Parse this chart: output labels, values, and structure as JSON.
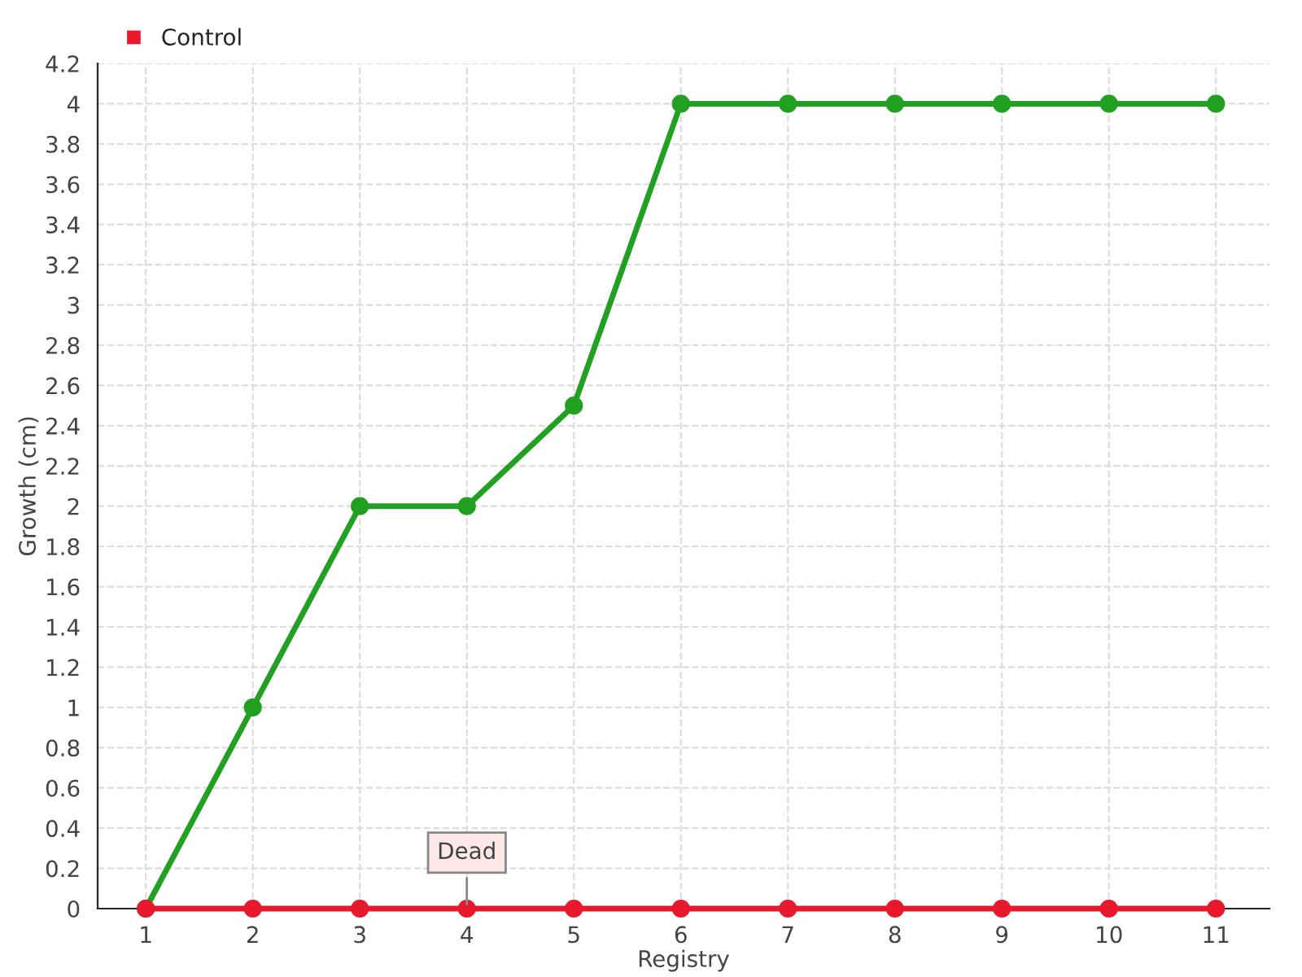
{
  "chart_data": {
    "type": "line",
    "xlabel": "Registry",
    "ylabel": "Growth (cm)",
    "categories": [
      "1",
      "2",
      "3",
      "4",
      "5",
      "6",
      "7",
      "8",
      "9",
      "10",
      "11"
    ],
    "series": [
      {
        "color": "#22a022",
        "values": [
          0,
          1,
          2,
          2,
          2.5,
          4,
          4,
          4,
          4,
          4,
          4
        ]
      },
      {
        "name": "Control",
        "color": "#e8192c",
        "values": [
          0,
          0,
          0,
          0,
          0,
          0,
          0,
          0,
          0,
          0,
          0
        ]
      }
    ],
    "ylim": [
      0,
      4.2
    ],
    "yticks": [
      0,
      0.2,
      0.4,
      0.6,
      0.8,
      1,
      1.2,
      1.4,
      1.6,
      1.8,
      2,
      2.2,
      2.4,
      2.6,
      2.8,
      3,
      3.2,
      3.4,
      3.6,
      3.8,
      4,
      4.2
    ],
    "annotations": [
      {
        "text": "Dead",
        "x": "4",
        "y": 0
      }
    ],
    "grid": true,
    "legend": "top left",
    "marker": "circle",
    "line_style": "solid"
  }
}
